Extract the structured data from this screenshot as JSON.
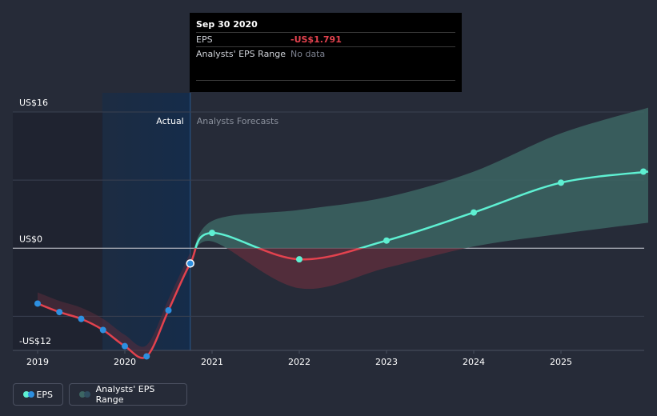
{
  "tooltip": {
    "date": "Sep 30 2020",
    "rows": [
      {
        "key": "EPS",
        "value": "-US$1.791"
      },
      {
        "key": "Analysts' EPS Range",
        "value": "No data"
      }
    ]
  },
  "region_labels": {
    "actual": "Actual",
    "forecast": "Analysts Forecasts"
  },
  "legend": {
    "eps": "EPS",
    "range": "Analysts' EPS Range"
  },
  "colors": {
    "background": "#262b38",
    "actual_band": "#152c4a",
    "past_shade": "#1f2330",
    "negative_line": "#e3424e",
    "positive_line": "#5ef0d2",
    "point": "#2d8fe0",
    "range_positive": "#3c6563",
    "range_negative": "#5a2e3c",
    "gridline": "#3a4050"
  },
  "chart_data": {
    "type": "line",
    "ylim": [
      -12,
      16
    ],
    "yticks": [
      {
        "value": 16,
        "label": "US$16"
      },
      {
        "value": 0,
        "label": "US$0"
      },
      {
        "value": -12,
        "label": "-US$12"
      }
    ],
    "xticks": [
      "2019",
      "2020",
      "2021",
      "2022",
      "2023",
      "2024",
      "2025"
    ],
    "actual_end": 2020.75,
    "series": [
      {
        "name": "EPS",
        "actual_points": [
          {
            "x": 2019.0,
            "y": -6.5
          },
          {
            "x": 2019.25,
            "y": -7.5
          },
          {
            "x": 2019.5,
            "y": -8.3
          },
          {
            "x": 2019.75,
            "y": -9.6
          },
          {
            "x": 2020.0,
            "y": -11.5
          },
          {
            "x": 2020.25,
            "y": -12.7
          },
          {
            "x": 2020.5,
            "y": -7.3
          },
          {
            "x": 2020.75,
            "y": -1.791
          }
        ],
        "forecast_points": [
          {
            "x": 2021.0,
            "y": 1.8
          },
          {
            "x": 2022.0,
            "y": -1.3
          },
          {
            "x": 2023.0,
            "y": 0.9
          },
          {
            "x": 2024.0,
            "y": 4.2
          },
          {
            "x": 2025.0,
            "y": 7.7
          },
          {
            "x": 2026.0,
            "y": 9.0
          }
        ]
      }
    ],
    "range": {
      "x": [
        2020.75,
        2021.0,
        2022.0,
        2023.0,
        2024.0,
        2025.0,
        2026.0
      ],
      "high": [
        -1.8,
        3.2,
        4.5,
        6.0,
        9.0,
        13.5,
        16.5
      ],
      "low": [
        -1.8,
        0.8,
        -4.7,
        -2.3,
        0.2,
        1.7,
        3.0
      ]
    }
  }
}
